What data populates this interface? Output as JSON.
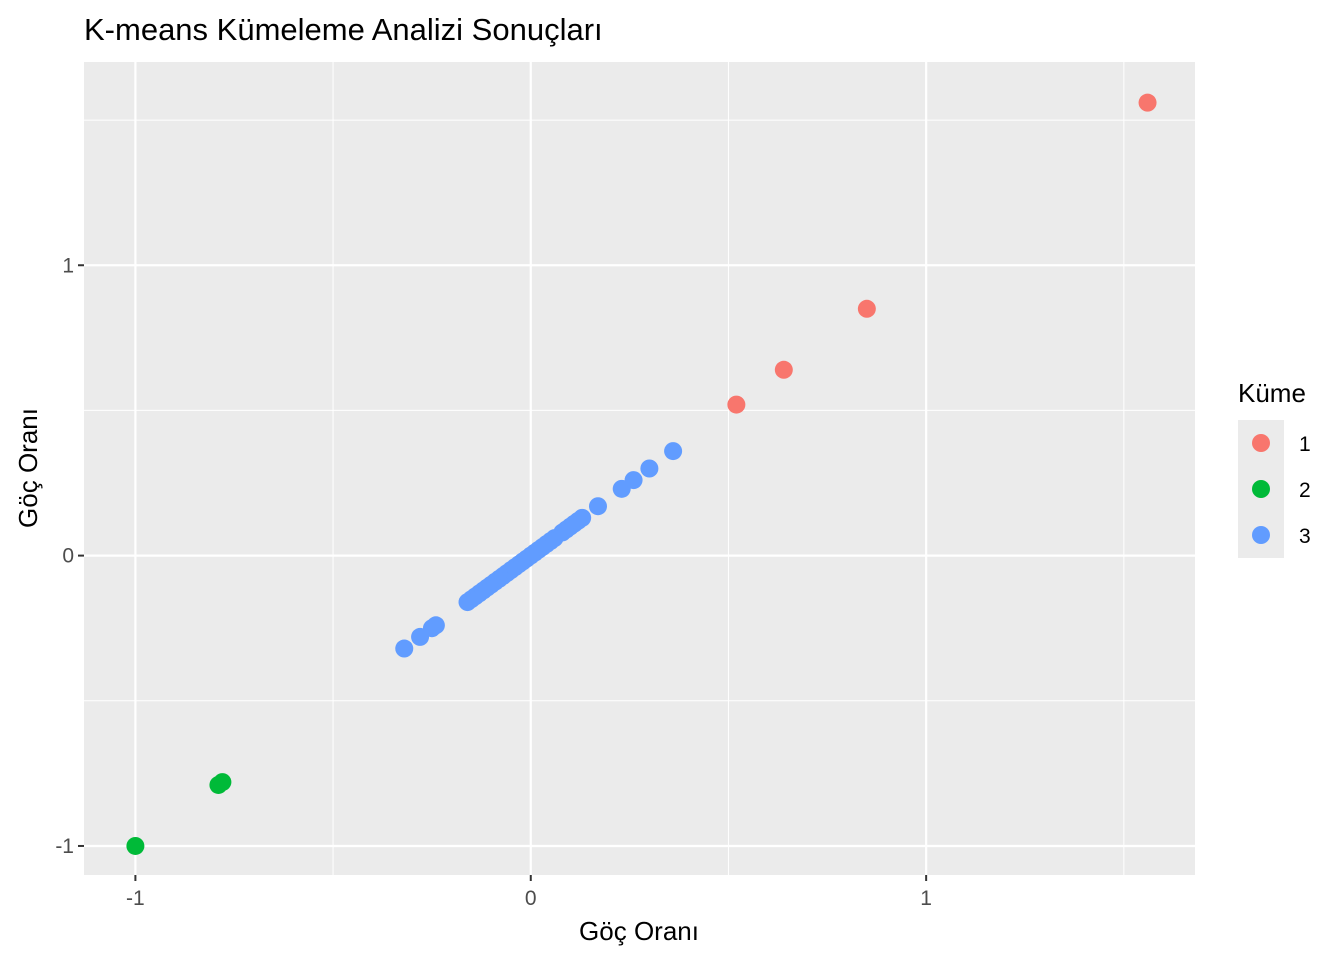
{
  "chart_data": {
    "type": "scatter",
    "title": "K-means Kümeleme Analizi Sonuçları",
    "xlabel": "Göç Oranı",
    "ylabel": "Göç Oranı",
    "xlim": [
      -1.13,
      1.68
    ],
    "ylim": [
      -1.1,
      1.7
    ],
    "x_ticks": [
      -1,
      0,
      1
    ],
    "y_ticks": [
      -1,
      0,
      1
    ],
    "x_tick_labels": [
      "-1",
      "0",
      "1"
    ],
    "y_tick_labels": [
      "-1",
      "0",
      "1"
    ],
    "grid": true,
    "legend": {
      "title": "Küme",
      "position": "right"
    },
    "series": [
      {
        "name": "1",
        "color": "#F8766D",
        "points": [
          [
            0.52,
            0.52
          ],
          [
            0.64,
            0.64
          ],
          [
            0.85,
            0.85
          ],
          [
            1.56,
            1.56
          ]
        ]
      },
      {
        "name": "2",
        "color": "#00BA38",
        "points": [
          [
            -1.0,
            -1.0
          ],
          [
            -0.78,
            -0.78
          ],
          [
            -0.79,
            -0.79
          ]
        ]
      },
      {
        "name": "3",
        "color": "#619CFF",
        "points": [
          [
            -0.32,
            -0.32
          ],
          [
            -0.28,
            -0.28
          ],
          [
            -0.25,
            -0.25
          ],
          [
            -0.24,
            -0.24
          ],
          [
            -0.16,
            -0.16
          ],
          [
            -0.15,
            -0.15
          ],
          [
            -0.14,
            -0.14
          ],
          [
            -0.13,
            -0.13
          ],
          [
            -0.12,
            -0.12
          ],
          [
            -0.11,
            -0.11
          ],
          [
            -0.1,
            -0.1
          ],
          [
            -0.09,
            -0.09
          ],
          [
            -0.08,
            -0.08
          ],
          [
            -0.07,
            -0.07
          ],
          [
            -0.06,
            -0.06
          ],
          [
            -0.05,
            -0.05
          ],
          [
            -0.04,
            -0.04
          ],
          [
            -0.03,
            -0.03
          ],
          [
            -0.02,
            -0.02
          ],
          [
            -0.01,
            -0.01
          ],
          [
            0.0,
            0.0
          ],
          [
            0.01,
            0.01
          ],
          [
            0.02,
            0.02
          ],
          [
            0.03,
            0.03
          ],
          [
            0.04,
            0.04
          ],
          [
            0.05,
            0.05
          ],
          [
            0.06,
            0.06
          ],
          [
            0.08,
            0.08
          ],
          [
            0.09,
            0.09
          ],
          [
            0.1,
            0.1
          ],
          [
            0.11,
            0.11
          ],
          [
            0.12,
            0.12
          ],
          [
            0.13,
            0.13
          ],
          [
            0.17,
            0.17
          ],
          [
            0.23,
            0.23
          ],
          [
            0.26,
            0.26
          ],
          [
            0.3,
            0.3
          ],
          [
            0.36,
            0.36
          ]
        ]
      }
    ]
  }
}
